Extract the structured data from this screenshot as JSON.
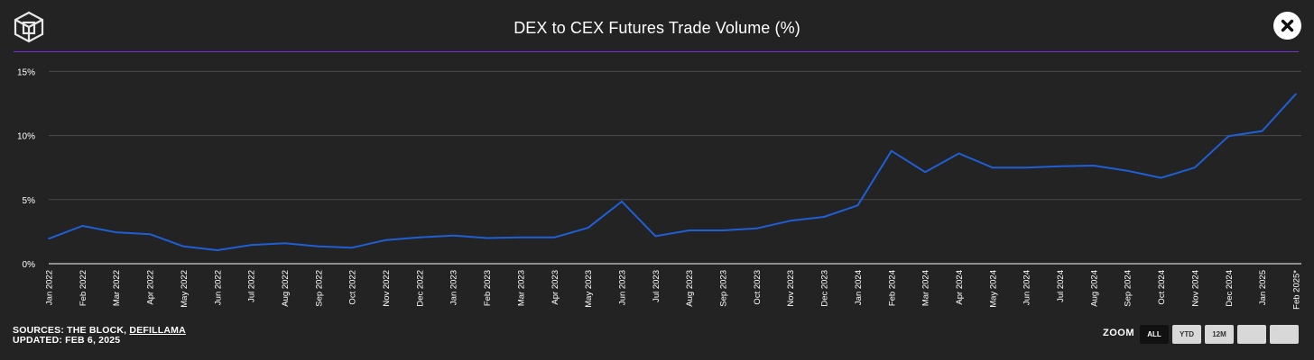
{
  "title": "DEX to CEX Futures Trade Volume (%)",
  "header_accent_color": "#7a2fd8",
  "icons": {
    "logo": "the-block-cube-logo-icon",
    "close": "close-x-icon"
  },
  "footer": {
    "sources_prefix": "SOURCES: THE BLOCK, ",
    "sources_link": "DEFILLAMA",
    "updated": "UPDATED: FEB 6, 2025"
  },
  "zoom": {
    "label": "ZOOM",
    "buttons": [
      "ALL",
      "YTD",
      "12M",
      "",
      ""
    ],
    "active": "ALL"
  },
  "chart_data": {
    "type": "line",
    "title": "DEX to CEX Futures Trade Volume (%)",
    "xlabel": "",
    "ylabel": "",
    "ylim": [
      0,
      16.5
    ],
    "yticks": [
      "0%",
      "5%",
      "10%",
      "15%"
    ],
    "ytick_values": [
      0,
      5,
      10,
      15
    ],
    "grid": true,
    "line_color": "#1f5fd6",
    "categories": [
      "Jan 2022",
      "Feb 2022",
      "Mar 2022",
      "Apr 2022",
      "May 2022",
      "Jun 2022",
      "Jul 2022",
      "Aug 2022",
      "Sep 2022",
      "Oct 2022",
      "Nov 2022",
      "Dec 2022",
      "Jan 2023",
      "Feb 2023",
      "Mar 2023",
      "Apr 2023",
      "May 2023",
      "Jun 2023",
      "Jul 2023",
      "Aug 2023",
      "Sep 2023",
      "Oct 2023",
      "Nov 2023",
      "Dec 2023",
      "Jan 2024",
      "Feb 2024",
      "Mar 2024",
      "Apr 2024",
      "May 2024",
      "Jun 2024",
      "Jul 2024",
      "Aug 2024",
      "Sep 2024",
      "Oct 2024",
      "Nov 2024",
      "Dec 2024",
      "Jan 2025",
      "Feb 2025*"
    ],
    "series": [
      {
        "name": "",
        "values": [
          1.95,
          2.95,
          2.45,
          2.3,
          1.35,
          1.05,
          1.45,
          1.6,
          1.35,
          1.25,
          1.85,
          2.05,
          2.2,
          2.0,
          2.05,
          2.05,
          2.8,
          4.85,
          2.15,
          2.6,
          2.6,
          2.75,
          3.35,
          3.65,
          4.55,
          8.8,
          7.15,
          8.6,
          7.5,
          7.5,
          7.6,
          7.65,
          7.25,
          6.7,
          7.5,
          9.95,
          10.35,
          13.25
        ]
      }
    ]
  }
}
